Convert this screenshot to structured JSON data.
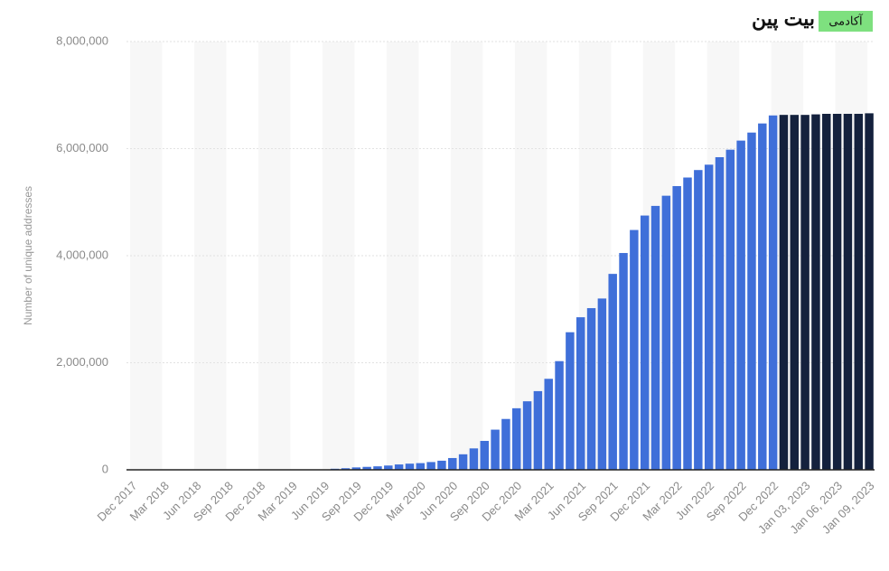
{
  "logo": {
    "brand": "بیت پین",
    "badge": "آکادمی"
  },
  "chart_data": {
    "type": "bar",
    "y_label": "Number of unique addresses",
    "categories": [
      "Dec 2017",
      null,
      null,
      "Mar 2018",
      null,
      null,
      "Jun 2018",
      null,
      null,
      "Sep 2018",
      null,
      null,
      "Dec 2018",
      null,
      null,
      "Mar 2019",
      null,
      null,
      "Jun 2019",
      null,
      null,
      "Sep 2019",
      null,
      null,
      "Dec 2019",
      null,
      null,
      "Mar 2020",
      null,
      null,
      "Jun 2020",
      null,
      null,
      "Sep 2020",
      null,
      null,
      "Dec 2020",
      null,
      null,
      "Mar 2021",
      null,
      null,
      "Jun 2021",
      null,
      null,
      "Sep 2021",
      null,
      null,
      "Dec 2021",
      null,
      null,
      "Mar 2022",
      null,
      null,
      "Jun 2022",
      null,
      null,
      "Sep 2022",
      null,
      null,
      "Dec 2022",
      null,
      null,
      "Jan 03, 2023",
      null,
      null,
      "Jan 06, 2023",
      null,
      null,
      "Jan 09, 2023"
    ],
    "values": [
      0,
      0,
      0,
      0,
      0,
      0,
      0,
      0,
      0,
      0,
      0,
      0,
      0,
      0,
      0,
      0,
      0,
      0,
      0,
      20000,
      30000,
      45000,
      55000,
      65000,
      80000,
      100000,
      115000,
      125000,
      145000,
      170000,
      220000,
      290000,
      400000,
      540000,
      750000,
      950000,
      1150000,
      1280000,
      1470000,
      1700000,
      2030000,
      2570000,
      2850000,
      3020000,
      3200000,
      3660000,
      4050000,
      4480000,
      4750000,
      4930000,
      5120000,
      5300000,
      5460000,
      5600000,
      5700000,
      5840000,
      5980000,
      6150000,
      6300000,
      6470000,
      6620000,
      6630000,
      6630000,
      6630000,
      6640000,
      6650000,
      6650000,
      6650000,
      6650000,
      6660000
    ],
    "colors": [
      "#3f6fd9",
      "#3f6fd9",
      "#3f6fd9",
      "#3f6fd9",
      "#3f6fd9",
      "#3f6fd9",
      "#3f6fd9",
      "#3f6fd9",
      "#3f6fd9",
      "#3f6fd9",
      "#3f6fd9",
      "#3f6fd9",
      "#3f6fd9",
      "#3f6fd9",
      "#3f6fd9",
      "#3f6fd9",
      "#3f6fd9",
      "#3f6fd9",
      "#3f6fd9",
      "#3f6fd9",
      "#3f6fd9",
      "#3f6fd9",
      "#3f6fd9",
      "#3f6fd9",
      "#3f6fd9",
      "#3f6fd9",
      "#3f6fd9",
      "#3f6fd9",
      "#3f6fd9",
      "#3f6fd9",
      "#3f6fd9",
      "#3f6fd9",
      "#3f6fd9",
      "#3f6fd9",
      "#3f6fd9",
      "#3f6fd9",
      "#3f6fd9",
      "#3f6fd9",
      "#3f6fd9",
      "#3f6fd9",
      "#3f6fd9",
      "#3f6fd9",
      "#3f6fd9",
      "#3f6fd9",
      "#3f6fd9",
      "#3f6fd9",
      "#3f6fd9",
      "#3f6fd9",
      "#3f6fd9",
      "#3f6fd9",
      "#3f6fd9",
      "#3f6fd9",
      "#3f6fd9",
      "#3f6fd9",
      "#3f6fd9",
      "#3f6fd9",
      "#3f6fd9",
      "#3f6fd9",
      "#3f6fd9",
      "#3f6fd9",
      "#3f6fd9",
      "#14213d",
      "#14213d",
      "#14213d",
      "#14213d",
      "#14213d",
      "#14213d",
      "#14213d",
      "#14213d",
      "#14213d"
    ],
    "ylim": [
      0,
      8000000
    ],
    "yticks": [
      0,
      {
        "value": 2000000,
        "label": "2,000,000"
      },
      {
        "value": 4000000,
        "label": "4,000,000"
      },
      {
        "value": 6000000,
        "label": "6,000,000"
      },
      {
        "value": 8000000,
        "label": "8,000,000"
      }
    ],
    "grid": true
  }
}
